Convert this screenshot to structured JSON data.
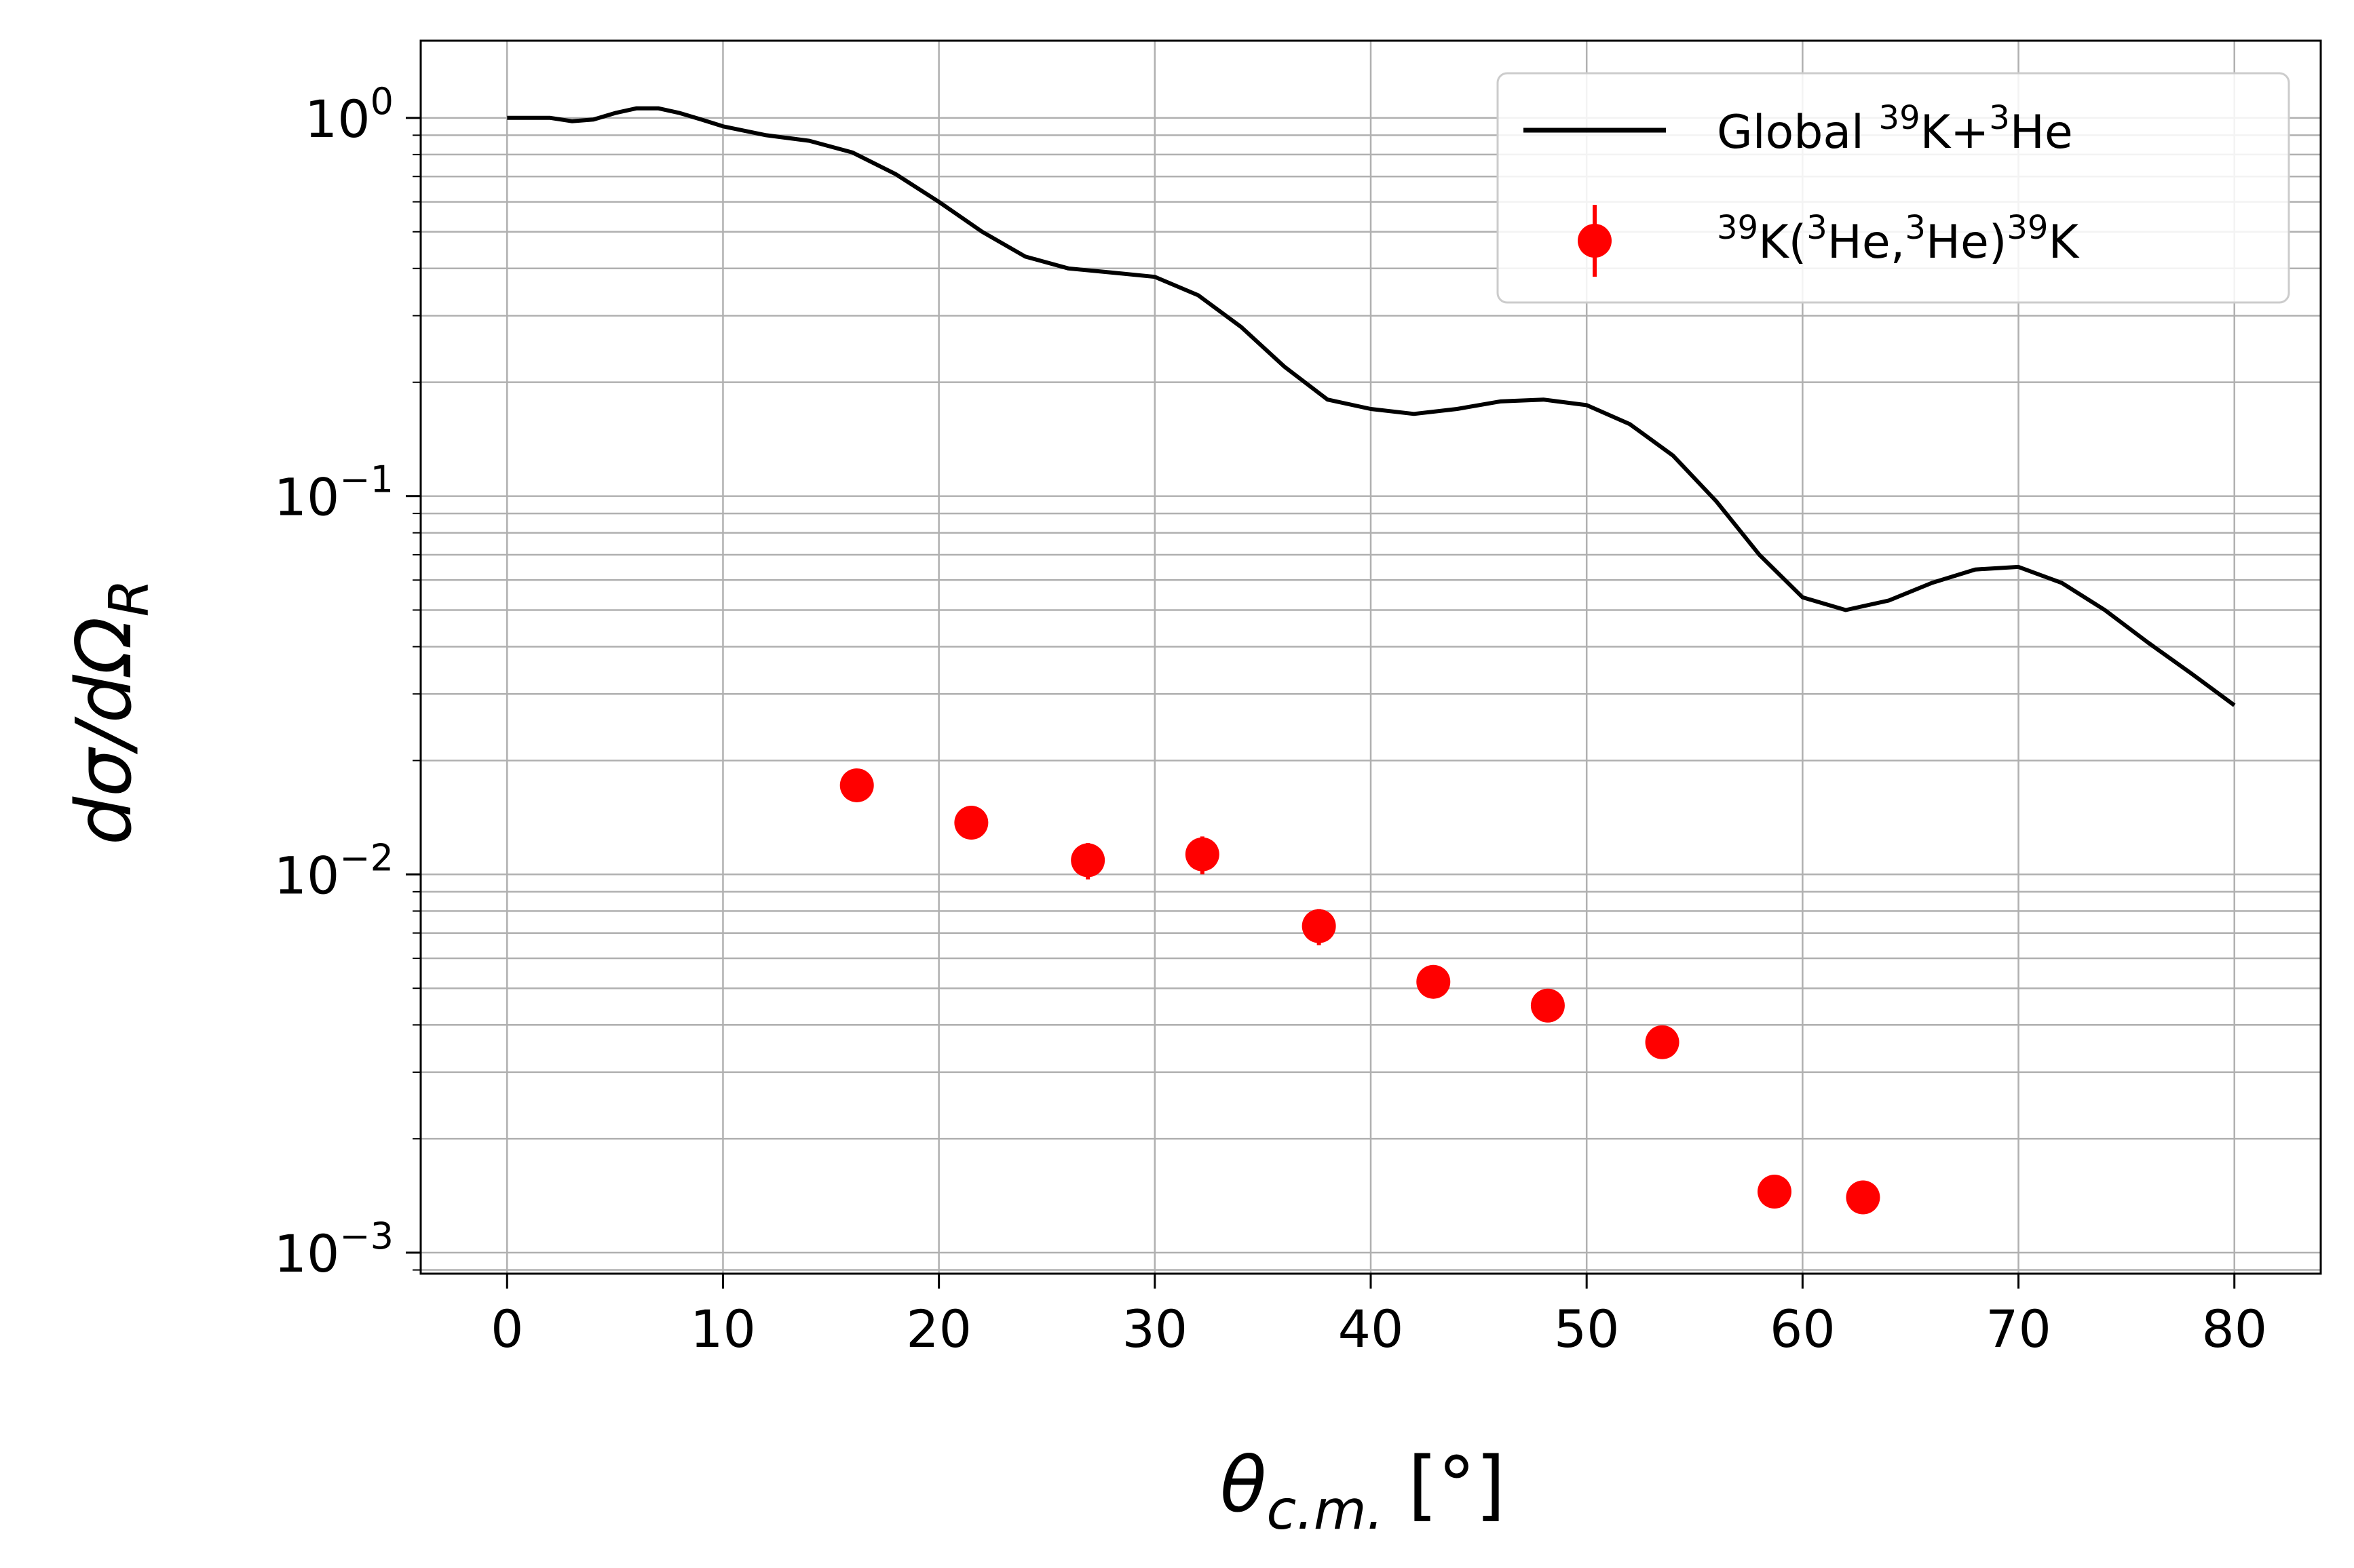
{
  "chart_data": {
    "type": "scatter",
    "title": "",
    "xlabel": "θ_{c.m.} [°]",
    "ylabel": "dσ/dΩ_R",
    "xlim": [
      -4,
      84
    ],
    "ylim": [
      0.00088,
      1.6
    ],
    "yscale": "log",
    "grid": true,
    "x_ticks": [
      0,
      10,
      20,
      30,
      40,
      50,
      60,
      70,
      80
    ],
    "y_ticks": [
      {
        "value": 1,
        "label": "10",
        "exp": "0"
      },
      {
        "value": 0.1,
        "label": "10",
        "exp": "−1"
      },
      {
        "value": 0.01,
        "label": "10",
        "exp": "−2"
      },
      {
        "value": 0.001,
        "label": "10",
        "exp": "−3"
      }
    ],
    "legend_position": "top-right",
    "series": [
      {
        "name": "Global 39K+3He",
        "legend_parts": [
          {
            "text": "Global ",
            "sup": false
          },
          {
            "text": "39",
            "sup": true
          },
          {
            "text": "K+",
            "sup": false
          },
          {
            "text": "3",
            "sup": true
          },
          {
            "text": "He",
            "sup": false
          }
        ],
        "kind": "line",
        "color": "#000000",
        "x": [
          0,
          2,
          3,
          4,
          5,
          6,
          7,
          8,
          9,
          10,
          12,
          14,
          16,
          18,
          20,
          22,
          24,
          26,
          28,
          30,
          32,
          34,
          36,
          38,
          40,
          42,
          44,
          46,
          48,
          50,
          52,
          54,
          56,
          58,
          60,
          62,
          64,
          66,
          68,
          70,
          72,
          74,
          76,
          78,
          80
        ],
        "y": [
          1.0,
          1.0,
          0.98,
          0.99,
          1.03,
          1.06,
          1.06,
          1.03,
          0.99,
          0.95,
          0.9,
          0.87,
          0.81,
          0.71,
          0.6,
          0.5,
          0.43,
          0.4,
          0.39,
          0.38,
          0.34,
          0.28,
          0.22,
          0.18,
          0.17,
          0.165,
          0.17,
          0.178,
          0.18,
          0.174,
          0.155,
          0.128,
          0.097,
          0.07,
          0.054,
          0.05,
          0.053,
          0.059,
          0.064,
          0.065,
          0.059,
          0.05,
          0.041,
          0.034,
          0.028
        ]
      },
      {
        "name": "39K(3He,3He)39K",
        "legend_parts": [
          {
            "text": "39",
            "sup": true
          },
          {
            "text": "K(",
            "sup": false
          },
          {
            "text": "3",
            "sup": true
          },
          {
            "text": "He,",
            "sup": false
          },
          {
            "text": "3",
            "sup": true
          },
          {
            "text": "He)",
            "sup": false
          },
          {
            "text": "39",
            "sup": true
          },
          {
            "text": "K",
            "sup": false
          }
        ],
        "kind": "errorbar",
        "color": "#ff0000",
        "x": [
          16.2,
          21.5,
          26.9,
          32.2,
          37.6,
          42.9,
          48.2,
          53.5,
          58.7,
          62.8
        ],
        "y": [
          0.0172,
          0.0137,
          0.0109,
          0.0113,
          0.0073,
          0.0052,
          0.0045,
          0.0036,
          0.00145,
          0.0014
        ],
        "yerr": [
          0.0015,
          0.0013,
          0.0012,
          0.0013,
          0.0008,
          0.0004,
          0.0003,
          0.00025,
          0.0001,
          0.0001
        ]
      }
    ]
  }
}
